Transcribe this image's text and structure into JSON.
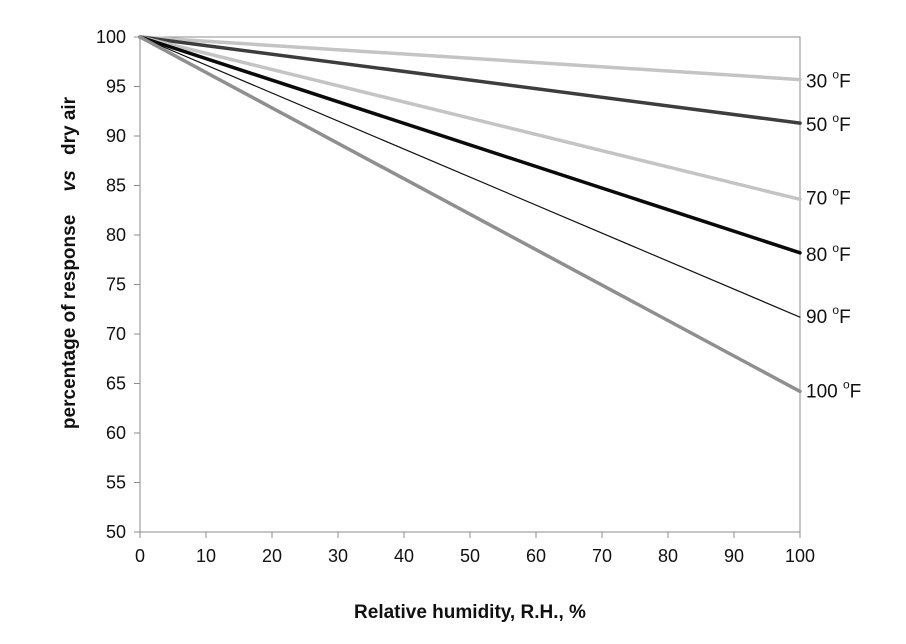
{
  "chart_data": {
    "type": "line",
    "xlabel": "Relative humidity, R.H., %",
    "ylabel_parts": [
      "percentage of response",
      "vs",
      "dry air"
    ],
    "xlim": [
      0,
      100
    ],
    "ylim": [
      50,
      100
    ],
    "x_ticks": [
      "0",
      "10",
      "20",
      "30",
      "40",
      "50",
      "60",
      "70",
      "80",
      "90",
      "100"
    ],
    "y_ticks": [
      "50",
      "55",
      "60",
      "65",
      "70",
      "75",
      "80",
      "85",
      "90",
      "95",
      "100"
    ],
    "grid": false,
    "series": [
      {
        "name": "30 °F",
        "temp": "30",
        "unit": "F",
        "x": [
          0,
          100
        ],
        "values": [
          100,
          95.7
        ],
        "color": "#c4c4c4",
        "width": 3.5
      },
      {
        "name": "50 °F",
        "temp": "50",
        "unit": "F",
        "x": [
          0,
          100
        ],
        "values": [
          100,
          91.3
        ],
        "color": "#3d3d3d",
        "width": 3.5
      },
      {
        "name": "70 °F",
        "temp": "70",
        "unit": "F",
        "x": [
          0,
          100
        ],
        "values": [
          100,
          83.6
        ],
        "color": "#c4c4c4",
        "width": 3.5
      },
      {
        "name": "80 °F",
        "temp": "80",
        "unit": "F",
        "x": [
          0,
          100
        ],
        "values": [
          100,
          78.2
        ],
        "color": "#0a0a0a",
        "width": 3.5
      },
      {
        "name": "90 °F",
        "temp": "90",
        "unit": "F",
        "x": [
          0,
          100
        ],
        "values": [
          100,
          71.7
        ],
        "color": "#111111",
        "width": 1.2
      },
      {
        "name": "100 °F",
        "temp": "100",
        "unit": "F",
        "x": [
          0,
          100
        ],
        "values": [
          100,
          64.2
        ],
        "color": "#8f8f8f",
        "width": 3.5
      }
    ]
  }
}
